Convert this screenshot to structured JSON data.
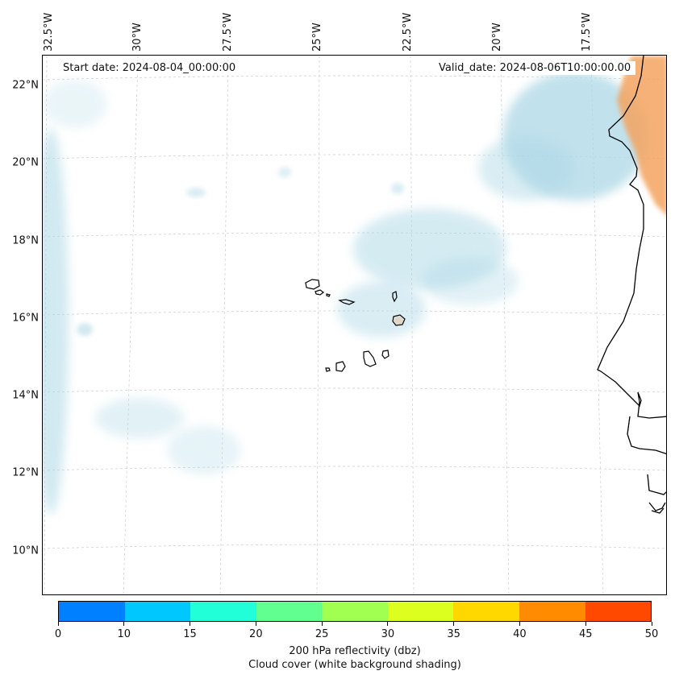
{
  "map": {
    "title_left": "Start date: 2024-08-04_00:00:00",
    "title_right": "Valid_date: 2024-08-06T10:00:00.00",
    "lon_labels": [
      "32.5°W",
      "30°W",
      "27.5°W",
      "25°W",
      "22.5°W",
      "20°W",
      "17.5°W"
    ],
    "lat_labels": [
      "22°N",
      "20°N",
      "18°N",
      "16°N",
      "14°N",
      "12°N",
      "10°N"
    ],
    "cloud_color": "#add8e6",
    "land_refl_color": "#f4a460",
    "coast_color": "#000000",
    "grid_color": "#cccccc"
  },
  "colorbar": {
    "ticks": [
      "0",
      "10",
      "15",
      "20",
      "25",
      "30",
      "35",
      "40",
      "45",
      "50"
    ],
    "colors": [
      "#0080ff",
      "#00c8ff",
      "#20ffd8",
      "#60ff90",
      "#a0ff50",
      "#dcff20",
      "#ffd800",
      "#ff8c00",
      "#ff4800"
    ],
    "label_line1": "200 hPa reflectivity (dbz)",
    "label_line2": "Cloud cover (white background shading)"
  }
}
